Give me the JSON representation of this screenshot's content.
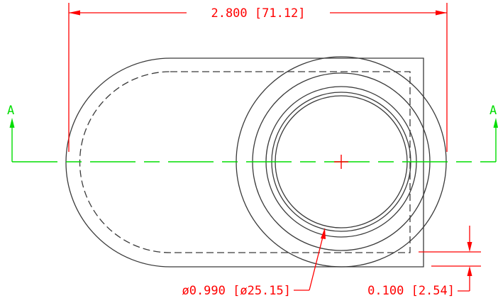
{
  "colors": {
    "background": "#ffffff",
    "geometry": "#3a3a3a",
    "dimension": "#ff0000",
    "section": "#00dd00"
  },
  "dimensions": {
    "overall_length": "2.800  [71.12]",
    "bore_diameter": "ø0.990  [ø25.15]",
    "wall_thickness": "0.100  [2.54]"
  },
  "section": {
    "left_label": "A",
    "right_label": "A"
  }
}
